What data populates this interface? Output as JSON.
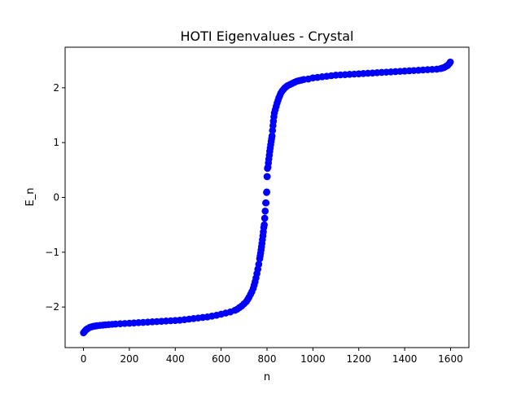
{
  "chart_data": {
    "type": "scatter",
    "title": "HOTI Eigenvalues - Crystal",
    "xlabel": "n",
    "ylabel": "E_n",
    "xlim": [
      -80,
      1680
    ],
    "ylim": [
      -2.74,
      2.74
    ],
    "x_ticks": [
      0,
      200,
      400,
      600,
      800,
      1000,
      1200,
      1400,
      1600
    ],
    "y_ticks": [
      -2,
      -1,
      0,
      1,
      2
    ],
    "x_tick_labels": [
      "0",
      "200",
      "400",
      "600",
      "800",
      "1000",
      "1200",
      "1400",
      "1600"
    ],
    "y_tick_labels": [
      "−2",
      "−1",
      "0",
      "1",
      "2"
    ],
    "grid": false,
    "legend": "none",
    "marker_color": "#0000ff",
    "series": [
      {
        "x": [
          0,
          4,
          8,
          12,
          16,
          20,
          28,
          36,
          44,
          52,
          60,
          72,
          84,
          96,
          110,
          125,
          140,
          160,
          180,
          200,
          220,
          240,
          260,
          280,
          300,
          320,
          340,
          360,
          380,
          400,
          420,
          440,
          460,
          480,
          500,
          520,
          540,
          560,
          580,
          600,
          620,
          640,
          660,
          670,
          680,
          690,
          700,
          710,
          716,
          722,
          728,
          734,
          740,
          744,
          748,
          752,
          756,
          760,
          764,
          768,
          770,
          772,
          774,
          776,
          778,
          780,
          782,
          784,
          786,
          788,
          790,
          792,
          794,
          796,
          798,
          799,
          800,
          801,
          802,
          804,
          806,
          808,
          810,
          812,
          814,
          816,
          818,
          820,
          822,
          824,
          826,
          828,
          830,
          832,
          836,
          840,
          844,
          848,
          852,
          856,
          860,
          866,
          872,
          878,
          884,
          890,
          900,
          910,
          920,
          930,
          940,
          950,
          960,
          980,
          1000,
          1020,
          1040,
          1060,
          1080,
          1100,
          1120,
          1140,
          1160,
          1180,
          1200,
          1220,
          1240,
          1260,
          1280,
          1300,
          1320,
          1340,
          1360,
          1380,
          1400,
          1420,
          1440,
          1460,
          1480,
          1500,
          1520,
          1540,
          1556,
          1564,
          1572,
          1580,
          1584,
          1588,
          1592,
          1596,
          1599
        ],
        "y": [
          -2.47,
          -2.45,
          -2.43,
          -2.41,
          -2.4,
          -2.39,
          -2.37,
          -2.36,
          -2.35,
          -2.345,
          -2.34,
          -2.335,
          -2.33,
          -2.325,
          -2.32,
          -2.315,
          -2.31,
          -2.305,
          -2.3,
          -2.295,
          -2.29,
          -2.285,
          -2.28,
          -2.275,
          -2.27,
          -2.265,
          -2.26,
          -2.255,
          -2.25,
          -2.245,
          -2.24,
          -2.23,
          -2.22,
          -2.21,
          -2.2,
          -2.19,
          -2.18,
          -2.165,
          -2.15,
          -2.13,
          -2.11,
          -2.09,
          -2.06,
          -2.04,
          -2.01,
          -1.98,
          -1.94,
          -1.9,
          -1.86,
          -1.82,
          -1.77,
          -1.72,
          -1.66,
          -1.6,
          -1.54,
          -1.47,
          -1.39,
          -1.31,
          -1.22,
          -1.12,
          -1.07,
          -1.02,
          -0.96,
          -0.9,
          -0.84,
          -0.77,
          -0.7,
          -0.63,
          -0.55,
          -0.5,
          -0.38,
          -0.25,
          -0.1,
          -0.1,
          0.09,
          0.1,
          0.38,
          0.38,
          0.53,
          0.55,
          0.63,
          0.7,
          0.77,
          0.84,
          0.9,
          0.96,
          1.02,
          1.07,
          1.12,
          1.22,
          1.31,
          1.39,
          1.47,
          1.54,
          1.6,
          1.66,
          1.72,
          1.77,
          1.82,
          1.86,
          1.9,
          1.94,
          1.97,
          2.0,
          2.02,
          2.04,
          2.06,
          2.08,
          2.1,
          2.12,
          2.13,
          2.14,
          2.15,
          2.16,
          2.18,
          2.19,
          2.2,
          2.21,
          2.22,
          2.23,
          2.235,
          2.24,
          2.245,
          2.25,
          2.255,
          2.26,
          2.265,
          2.27,
          2.275,
          2.28,
          2.285,
          2.29,
          2.295,
          2.3,
          2.305,
          2.31,
          2.315,
          2.32,
          2.325,
          2.33,
          2.335,
          2.34,
          2.35,
          2.36,
          2.37,
          2.39,
          2.4,
          2.41,
          2.43,
          2.45,
          2.47
        ]
      }
    ]
  }
}
